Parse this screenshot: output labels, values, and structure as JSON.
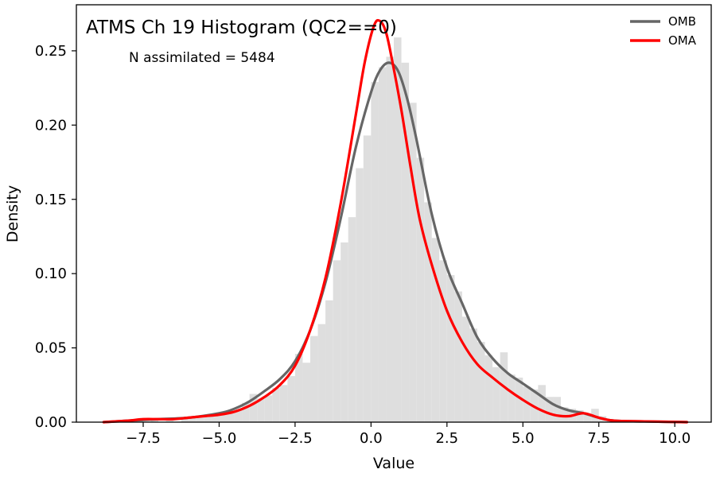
{
  "chart_data": {
    "type": "line",
    "title": "ATMS Ch 19 Histogram (QC2==0)",
    "annotation": "N assimilated = 5484",
    "xlabel": "Value",
    "ylabel": "Density",
    "xlim": [
      -9.7,
      11.2
    ],
    "ylim": [
      0,
      0.281
    ],
    "xticks": [
      -7.5,
      -5.0,
      -2.5,
      0.0,
      2.5,
      5.0,
      7.5,
      10.0
    ],
    "xtick_labels": [
      "−7.5",
      "−5.0",
      "−2.5",
      "0.0",
      "2.5",
      "5.0",
      "7.5",
      "10.0"
    ],
    "yticks": [
      0.0,
      0.05,
      0.1,
      0.15,
      0.2,
      0.25
    ],
    "ytick_labels": [
      "0.00",
      "0.05",
      "0.10",
      "0.15",
      "0.20",
      "0.25"
    ],
    "grid": false,
    "legend_position": "top-right",
    "histogram": {
      "color": "#dedede",
      "bins": [
        {
          "x0": -8.5,
          "x1": -8.25,
          "value": 0.001
        },
        {
          "x0": -7.75,
          "x1": -7.5,
          "value": 0.001
        },
        {
          "x0": -7.25,
          "x1": -7.0,
          "value": 0.002
        },
        {
          "x0": -6.75,
          "x1": -6.5,
          "value": 0.001
        },
        {
          "x0": -6.25,
          "x1": -6.0,
          "value": 0.002
        },
        {
          "x0": -6.0,
          "x1": -5.75,
          "value": 0.003
        },
        {
          "x0": -5.75,
          "x1": -5.5,
          "value": 0.003
        },
        {
          "x0": -5.5,
          "x1": -5.25,
          "value": 0.004
        },
        {
          "x0": -5.25,
          "x1": -5.0,
          "value": 0.005
        },
        {
          "x0": -5.0,
          "x1": -4.75,
          "value": 0.006
        },
        {
          "x0": -4.75,
          "x1": -4.5,
          "value": 0.006
        },
        {
          "x0": -4.5,
          "x1": -4.25,
          "value": 0.008
        },
        {
          "x0": -4.25,
          "x1": -4.0,
          "value": 0.013
        },
        {
          "x0": -4.0,
          "x1": -3.75,
          "value": 0.019
        },
        {
          "x0": -3.75,
          "x1": -3.5,
          "value": 0.016
        },
        {
          "x0": -3.5,
          "x1": -3.25,
          "value": 0.018
        },
        {
          "x0": -3.25,
          "x1": -3.0,
          "value": 0.023
        },
        {
          "x0": -3.0,
          "x1": -2.75,
          "value": 0.025
        },
        {
          "x0": -2.75,
          "x1": -2.5,
          "value": 0.031
        },
        {
          "x0": -2.5,
          "x1": -2.25,
          "value": 0.046
        },
        {
          "x0": -2.25,
          "x1": -2.0,
          "value": 0.04
        },
        {
          "x0": -2.0,
          "x1": -1.75,
          "value": 0.058
        },
        {
          "x0": -1.75,
          "x1": -1.5,
          "value": 0.066
        },
        {
          "x0": -1.5,
          "x1": -1.25,
          "value": 0.082
        },
        {
          "x0": -1.25,
          "x1": -1.0,
          "value": 0.109
        },
        {
          "x0": -1.0,
          "x1": -0.75,
          "value": 0.121
        },
        {
          "x0": -0.75,
          "x1": -0.5,
          "value": 0.138
        },
        {
          "x0": -0.5,
          "x1": -0.25,
          "value": 0.171
        },
        {
          "x0": -0.25,
          "x1": 0.0,
          "value": 0.193
        },
        {
          "x0": 0.0,
          "x1": 0.25,
          "value": 0.229
        },
        {
          "x0": 0.25,
          "x1": 0.5,
          "value": 0.239
        },
        {
          "x0": 0.5,
          "x1": 0.75,
          "value": 0.246
        },
        {
          "x0": 0.75,
          "x1": 1.0,
          "value": 0.259
        },
        {
          "x0": 1.0,
          "x1": 1.25,
          "value": 0.242
        },
        {
          "x0": 1.25,
          "x1": 1.5,
          "value": 0.215
        },
        {
          "x0": 1.5,
          "x1": 1.75,
          "value": 0.178
        },
        {
          "x0": 1.75,
          "x1": 2.0,
          "value": 0.148
        },
        {
          "x0": 2.0,
          "x1": 2.25,
          "value": 0.124
        },
        {
          "x0": 2.25,
          "x1": 2.5,
          "value": 0.109
        },
        {
          "x0": 2.5,
          "x1": 2.75,
          "value": 0.099
        },
        {
          "x0": 2.75,
          "x1": 3.0,
          "value": 0.088
        },
        {
          "x0": 3.0,
          "x1": 3.25,
          "value": 0.071
        },
        {
          "x0": 3.25,
          "x1": 3.5,
          "value": 0.063
        },
        {
          "x0": 3.5,
          "x1": 3.75,
          "value": 0.054
        },
        {
          "x0": 3.75,
          "x1": 4.0,
          "value": 0.045
        },
        {
          "x0": 4.0,
          "x1": 4.25,
          "value": 0.037
        },
        {
          "x0": 4.25,
          "x1": 4.5,
          "value": 0.047
        },
        {
          "x0": 4.5,
          "x1": 4.75,
          "value": 0.032
        },
        {
          "x0": 4.75,
          "x1": 5.0,
          "value": 0.03
        },
        {
          "x0": 5.0,
          "x1": 5.25,
          "value": 0.024
        },
        {
          "x0": 5.25,
          "x1": 5.5,
          "value": 0.022
        },
        {
          "x0": 5.5,
          "x1": 5.75,
          "value": 0.025
        },
        {
          "x0": 5.75,
          "x1": 6.0,
          "value": 0.017
        },
        {
          "x0": 6.0,
          "x1": 6.25,
          "value": 0.017
        },
        {
          "x0": 6.25,
          "x1": 6.5,
          "value": 0.01
        },
        {
          "x0": 6.5,
          "x1": 6.75,
          "value": 0.009
        },
        {
          "x0": 6.75,
          "x1": 7.0,
          "value": 0.008
        },
        {
          "x0": 7.0,
          "x1": 7.25,
          "value": 0.005
        },
        {
          "x0": 7.25,
          "x1": 7.5,
          "value": 0.009
        },
        {
          "x0": 7.5,
          "x1": 7.75,
          "value": 0.004
        },
        {
          "x0": 7.75,
          "x1": 8.0,
          "value": 0.002
        },
        {
          "x0": 8.0,
          "x1": 8.25,
          "value": 0.001
        },
        {
          "x0": 8.5,
          "x1": 8.75,
          "value": 0.001
        },
        {
          "x0": 9.25,
          "x1": 9.5,
          "value": 0.001
        }
      ]
    },
    "series": [
      {
        "name": "OMB",
        "color": "#666666",
        "x": [
          -8.8,
          -8.0,
          -7.0,
          -6.0,
          -5.0,
          -4.5,
          -4.0,
          -3.5,
          -3.0,
          -2.5,
          -2.0,
          -1.5,
          -1.0,
          -0.5,
          0.0,
          0.3,
          0.6,
          0.9,
          1.2,
          1.5,
          2.0,
          2.5,
          3.0,
          3.5,
          4.0,
          4.5,
          5.0,
          5.5,
          6.0,
          6.5,
          7.0,
          7.5,
          8.0,
          9.0,
          10.4
        ],
        "y": [
          0.0,
          0.001,
          0.002,
          0.003,
          0.006,
          0.009,
          0.014,
          0.021,
          0.029,
          0.041,
          0.062,
          0.094,
          0.137,
          0.185,
          0.222,
          0.237,
          0.242,
          0.236,
          0.217,
          0.19,
          0.14,
          0.104,
          0.08,
          0.057,
          0.043,
          0.033,
          0.026,
          0.019,
          0.012,
          0.008,
          0.006,
          0.003,
          0.001,
          0.0005,
          0.0
        ]
      },
      {
        "name": "OMA",
        "color": "#ff0000",
        "x": [
          -8.8,
          -8.0,
          -7.5,
          -7.0,
          -6.5,
          -6.0,
          -5.5,
          -5.0,
          -4.5,
          -4.0,
          -3.5,
          -3.0,
          -2.5,
          -2.0,
          -1.5,
          -1.0,
          -0.5,
          -0.2,
          0.1,
          0.3,
          0.5,
          0.7,
          1.0,
          1.3,
          1.6,
          2.0,
          2.5,
          3.0,
          3.5,
          4.0,
          4.5,
          5.0,
          5.5,
          6.0,
          6.5,
          7.0,
          7.5,
          8.0,
          9.0,
          10.4
        ],
        "y": [
          0.0,
          0.001,
          0.002,
          0.002,
          0.002,
          0.003,
          0.004,
          0.005,
          0.007,
          0.011,
          0.017,
          0.025,
          0.038,
          0.062,
          0.097,
          0.147,
          0.207,
          0.243,
          0.267,
          0.27,
          0.262,
          0.243,
          0.21,
          0.172,
          0.137,
          0.106,
          0.075,
          0.054,
          0.039,
          0.03,
          0.022,
          0.015,
          0.009,
          0.005,
          0.004,
          0.006,
          0.003,
          0.001,
          0.0005,
          0.0
        ]
      }
    ]
  }
}
